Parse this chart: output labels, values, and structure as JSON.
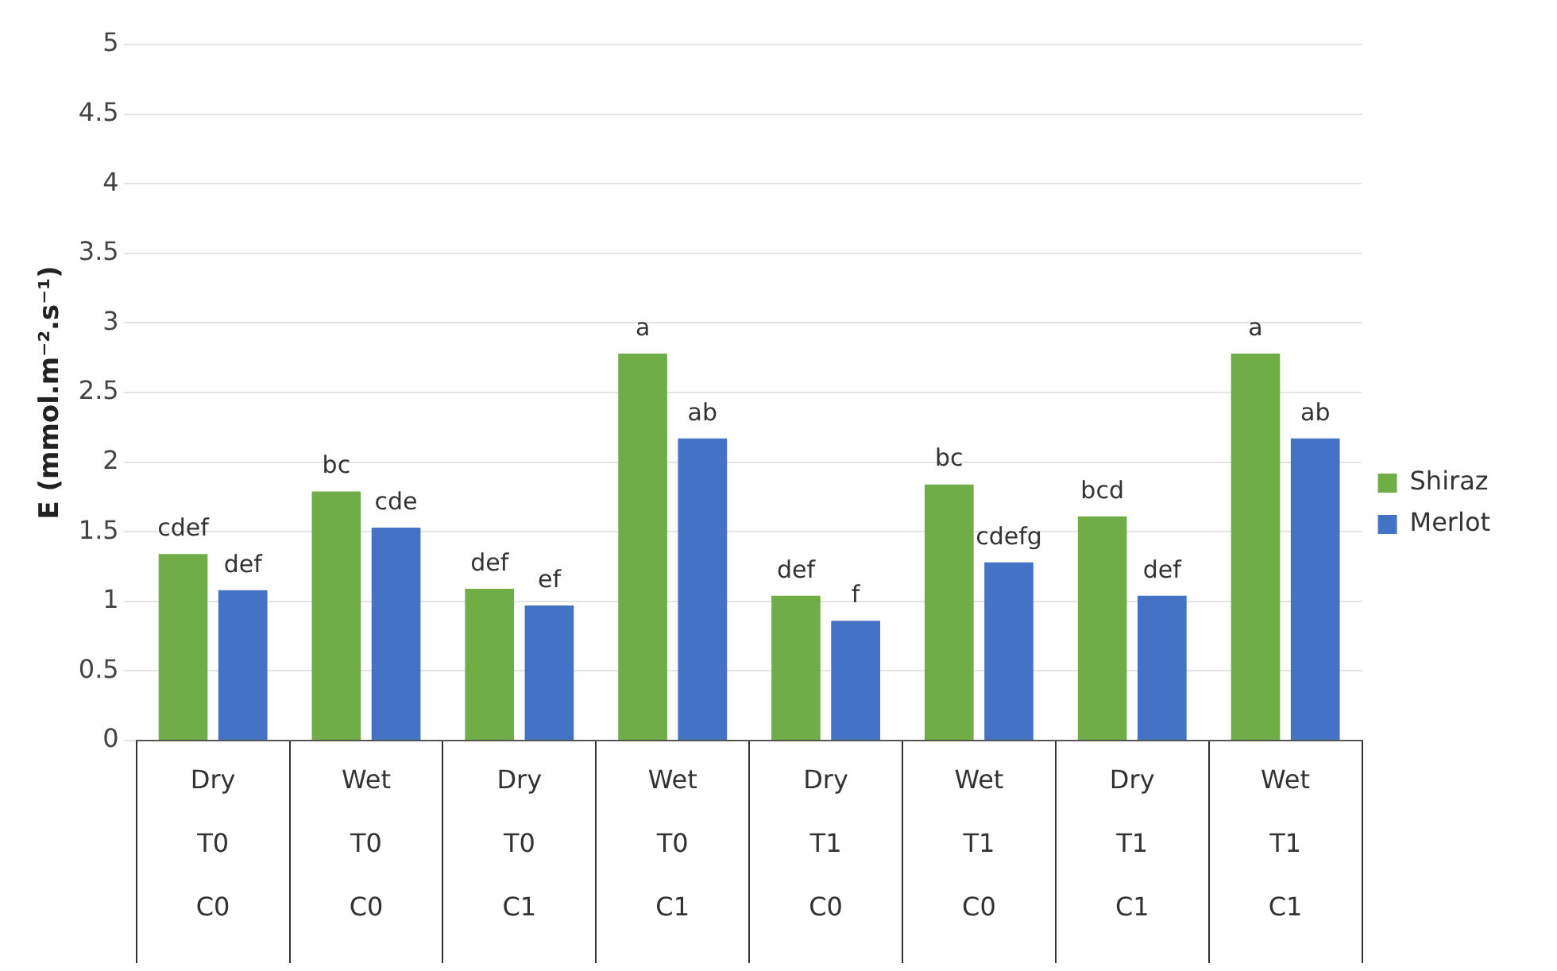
{
  "chart_data": {
    "type": "bar",
    "ylabel": "E (mmol.m⁻².s⁻¹)",
    "categories": [
      "Dry\nT0\nC0",
      "Wet\nT0\nC0",
      "Dry\nT0\nC1",
      "Wet\nT0\nC1",
      "Dry\nT1\nC0",
      "Wet\nT1\nC0",
      "Dry\nT1\nC1",
      "Wet\nT1\nC1"
    ],
    "series": [
      {
        "name": "Shiraz",
        "color": "#70ad47",
        "values": [
          1.34,
          1.79,
          1.09,
          2.78,
          1.04,
          1.84,
          1.61,
          2.78
        ],
        "value_labels": [
          "cdef",
          "bc",
          "def",
          "a",
          "def",
          "bc",
          "bcd",
          "a"
        ]
      },
      {
        "name": "Merlot",
        "color": "#4472c4",
        "values": [
          1.08,
          1.53,
          0.97,
          2.17,
          0.86,
          1.28,
          1.04,
          2.17
        ],
        "value_labels": [
          "def",
          "cde",
          "ef",
          "ab",
          "f",
          "cdefg",
          "def",
          "ab"
        ]
      }
    ],
    "ylim": [
      0,
      5
    ],
    "yticks": [
      0,
      0.5,
      1,
      1.5,
      2,
      2.5,
      3,
      3.5,
      4,
      4.5,
      5
    ],
    "grid": "y",
    "legend": "right"
  }
}
